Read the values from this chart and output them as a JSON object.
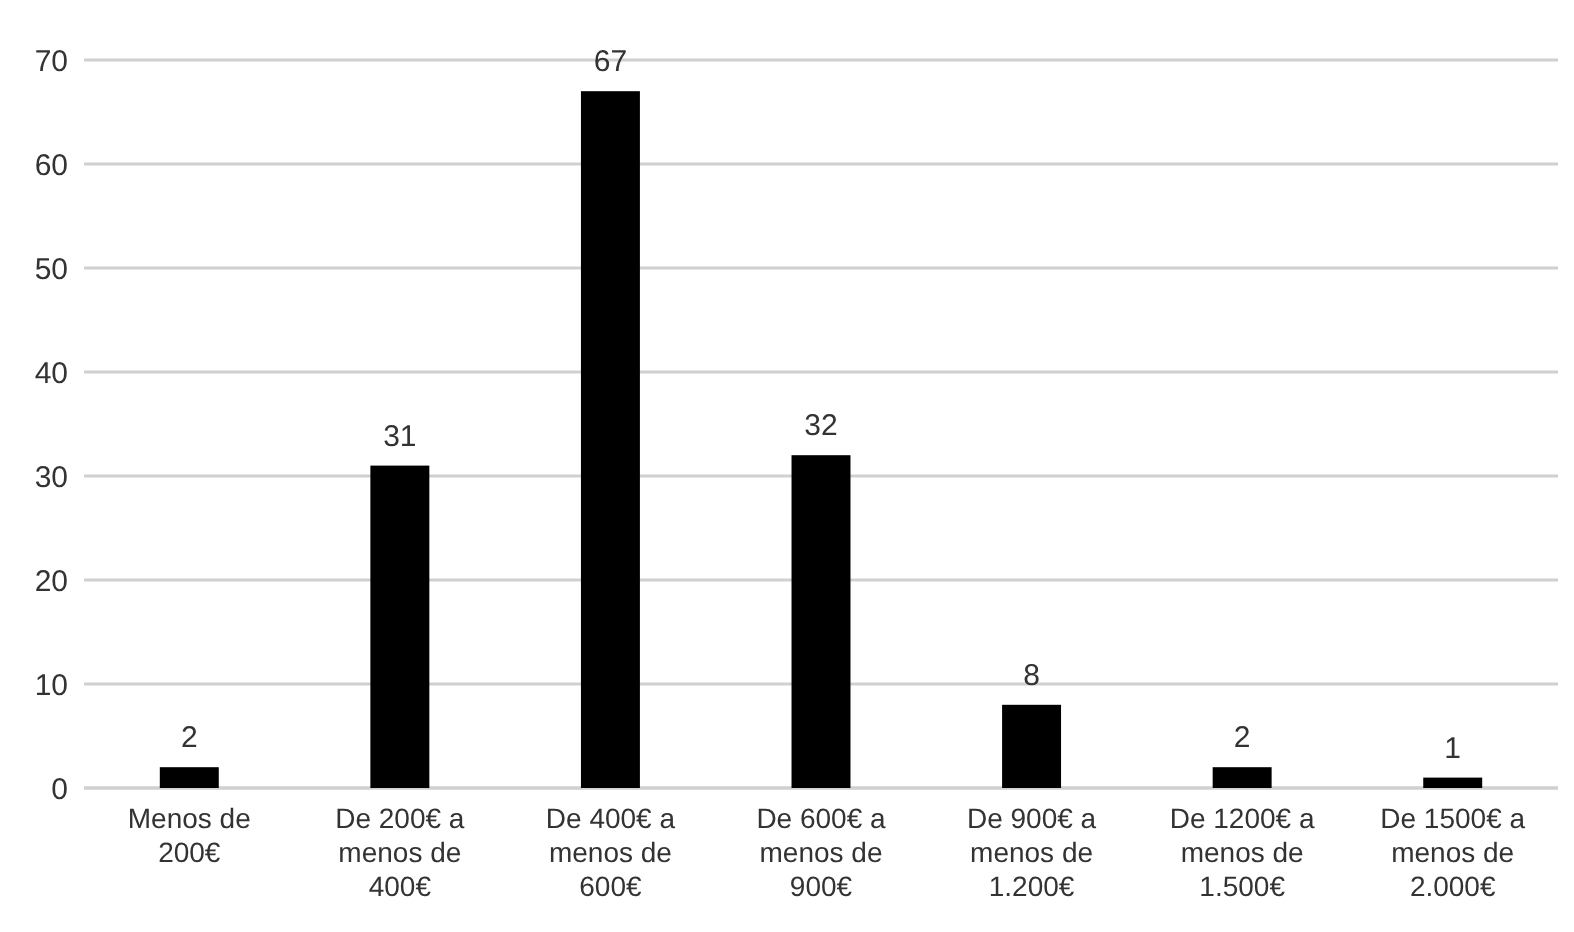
{
  "chart_data": {
    "type": "bar",
    "categories": [
      "Menos de 200€",
      "De 200€ a menos de 400€",
      "De 400€ a menos de 600€",
      "De 600€ a menos de 900€",
      "De 900€ a menos de 1.200€",
      "De 1200€ a menos de 1.500€",
      "De 1500€ a menos de 2.000€"
    ],
    "values": [
      2,
      31,
      67,
      32,
      8,
      2,
      1
    ],
    "color": "#000000",
    "ylim": [
      0,
      70
    ],
    "yticks": [
      0,
      10,
      20,
      30,
      40,
      50,
      60,
      70
    ],
    "grid": "y",
    "data_labels": true
  }
}
